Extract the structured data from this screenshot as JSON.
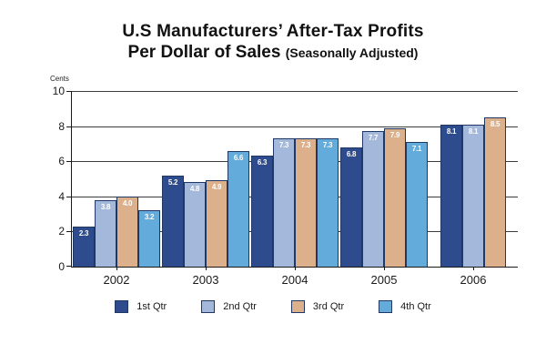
{
  "title": {
    "line1": "U.S Manufacturers’ After-Tax Profits",
    "line2_main": "Per Dollar of Sales",
    "line2_small": "(Seasonally Adjusted)"
  },
  "chart_data": {
    "type": "bar",
    "title": "U.S Manufacturers’ After-Tax Profits Per Dollar of Sales (Seasonally Adjusted)",
    "ylabel": "Cents",
    "xlabel": "",
    "categories": [
      "2002",
      "2003",
      "2004",
      "2005",
      "2006"
    ],
    "series": [
      {
        "name": "1st Qtr",
        "color": "#2e4b8e",
        "values": [
          2.3,
          5.2,
          6.3,
          6.8,
          8.1
        ]
      },
      {
        "name": "2nd Qtr",
        "color": "#a4b8dc",
        "values": [
          3.8,
          4.8,
          7.3,
          7.7,
          8.1
        ]
      },
      {
        "name": "3rd Qtr",
        "color": "#ddb08c",
        "values": [
          4.0,
          4.9,
          7.3,
          7.9,
          8.5
        ]
      },
      {
        "name": "4th Qtr",
        "color": "#62abdb",
        "values": [
          3.2,
          6.6,
          7.3,
          7.1,
          null
        ]
      }
    ],
    "ylim": [
      0,
      10
    ],
    "ytick_step": 2,
    "grid": true,
    "legend_position": "bottom",
    "bar_border_color": "#1f3864",
    "value_label_color": "#ffffff",
    "value_label_decimals": 1
  }
}
